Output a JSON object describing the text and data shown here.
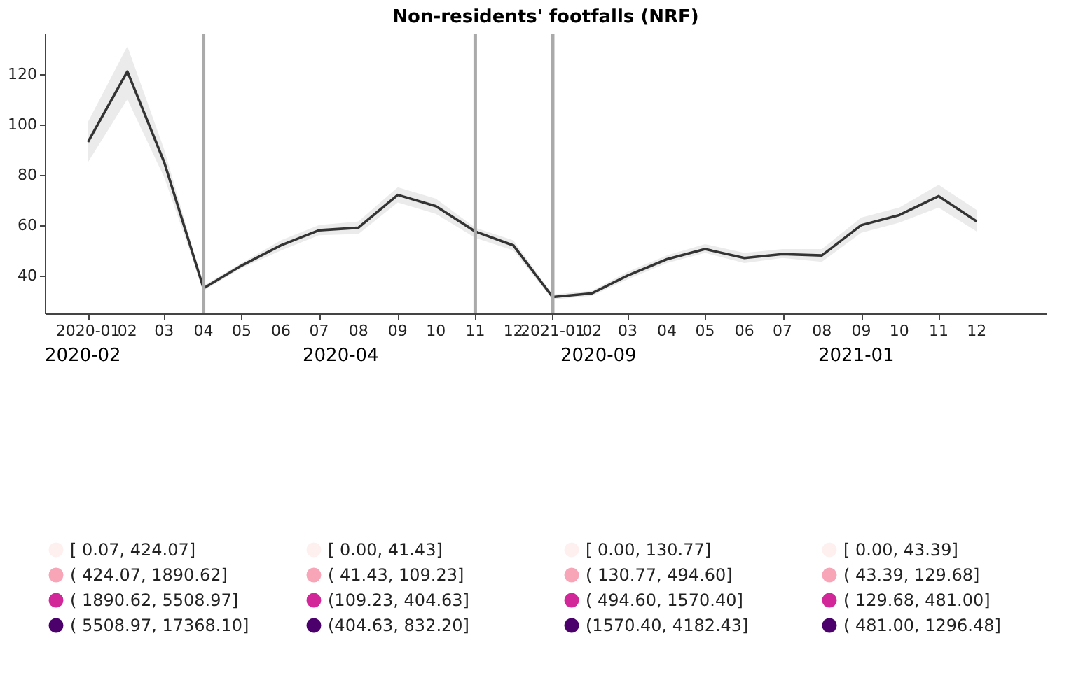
{
  "chart_data": [
    {
      "type": "line",
      "title": "Non-residents' footfalls (NRF)",
      "x": [
        "2020-01",
        "2020-02",
        "2020-03",
        "2020-04",
        "2020-05",
        "2020-06",
        "2020-07",
        "2020-08",
        "2020-09",
        "2020-10",
        "2020-11",
        "2020-12",
        "2021-01",
        "2021-02",
        "2021-03",
        "2021-04",
        "2021-05",
        "2021-06",
        "2021-07",
        "2021-08",
        "2021-09",
        "2021-10",
        "2021-11",
        "2021-12"
      ],
      "series": [
        {
          "color": "#333333",
          "values": [
            93,
            121,
            85,
            35,
            44,
            52,
            58,
            59,
            72,
            67.5,
            57.5,
            52,
            31.5,
            33,
            40,
            46.5,
            50.5,
            47,
            48.5,
            48,
            60,
            64,
            71.5,
            61.5
          ],
          "lower": [
            85,
            110,
            79,
            34,
            43,
            50,
            56,
            56.5,
            69,
            64.5,
            55,
            50,
            30.5,
            32,
            38.5,
            45,
            49,
            45,
            47,
            45.5,
            57,
            61,
            67,
            57.5
          ],
          "upper": [
            101,
            131,
            90,
            36,
            45,
            54,
            60,
            61.5,
            75,
            70.5,
            59,
            54,
            32.5,
            34,
            41.5,
            48,
            52.5,
            49,
            50.5,
            50.5,
            63,
            67,
            76,
            66
          ]
        }
      ],
      "xlim": [
        "2019-11-28",
        "2022-01-25"
      ],
      "xticks": [
        {
          "value": "2020-01",
          "label": "2020-01"
        },
        {
          "value": "2020-02",
          "label": "02"
        },
        {
          "value": "2020-03",
          "label": "03"
        },
        {
          "value": "2020-04",
          "label": "04"
        },
        {
          "value": "2020-05",
          "label": "05"
        },
        {
          "value": "2020-06",
          "label": "06"
        },
        {
          "value": "2020-07",
          "label": "07"
        },
        {
          "value": "2020-08",
          "label": "08"
        },
        {
          "value": "2020-09",
          "label": "09"
        },
        {
          "value": "2020-10",
          "label": "10"
        },
        {
          "value": "2020-11",
          "label": "11"
        },
        {
          "value": "2020-12",
          "label": "12"
        },
        {
          "value": "2021-01",
          "label": "2021-01"
        },
        {
          "value": "2021-02",
          "label": "02"
        },
        {
          "value": "2021-03",
          "label": "03"
        },
        {
          "value": "2021-04",
          "label": "04"
        },
        {
          "value": "2021-05",
          "label": "05"
        },
        {
          "value": "2021-06",
          "label": "06"
        },
        {
          "value": "2021-07",
          "label": "07"
        },
        {
          "value": "2021-08",
          "label": "08"
        },
        {
          "value": "2021-09",
          "label": "09"
        },
        {
          "value": "2021-10",
          "label": "10"
        },
        {
          "value": "2021-11",
          "label": "11"
        },
        {
          "value": "2021-12",
          "label": "12"
        }
      ],
      "ylim": [
        25,
        136
      ],
      "yticks": [
        40,
        60,
        80,
        100,
        120
      ],
      "ref_lines": [
        {
          "axis": "x",
          "value": "2020-04",
          "color": "#aaaaaa"
        },
        {
          "axis": "x",
          "value": "2020-11",
          "color": "#aaaaaa"
        },
        {
          "axis": "x",
          "value": "2021-01",
          "color": "#aaaaaa"
        }
      ],
      "grid": false
    },
    {
      "type": "other",
      "title": "2020-02",
      "categories": [
        "[ 0.07, 424.07]",
        "( 424.07, 1890.62]",
        "( 1890.62, 5508.97]",
        "( 5508.97, 17368.10]"
      ],
      "colors": [
        "#fff0f0",
        "#f8a5b8",
        "#d22799",
        "#4b006b"
      ]
    },
    {
      "type": "other",
      "title": "2020-04",
      "categories": [
        "[ 0.00, 41.43]",
        "( 41.43, 109.23]",
        "(109.23, 404.63]",
        "(404.63, 832.20]"
      ],
      "colors": [
        "#fff0f0",
        "#f8a5b8",
        "#d22799",
        "#4b006b"
      ]
    },
    {
      "type": "other",
      "title": "2020-09",
      "categories": [
        "[ 0.00, 130.77]",
        "( 130.77, 494.60]",
        "( 494.60, 1570.40]",
        "(1570.40, 4182.43]"
      ],
      "colors": [
        "#fff0f0",
        "#f8a5b8",
        "#d22799",
        "#4b006b"
      ]
    },
    {
      "type": "other",
      "title": "2021-01",
      "categories": [
        "[ 0.00, 43.39]",
        "( 43.39, 129.68]",
        "( 129.68, 481.00]",
        "( 481.00, 1296.48]"
      ],
      "colors": [
        "#fff0f0",
        "#f8a5b8",
        "#d22799",
        "#4b006b"
      ]
    }
  ]
}
